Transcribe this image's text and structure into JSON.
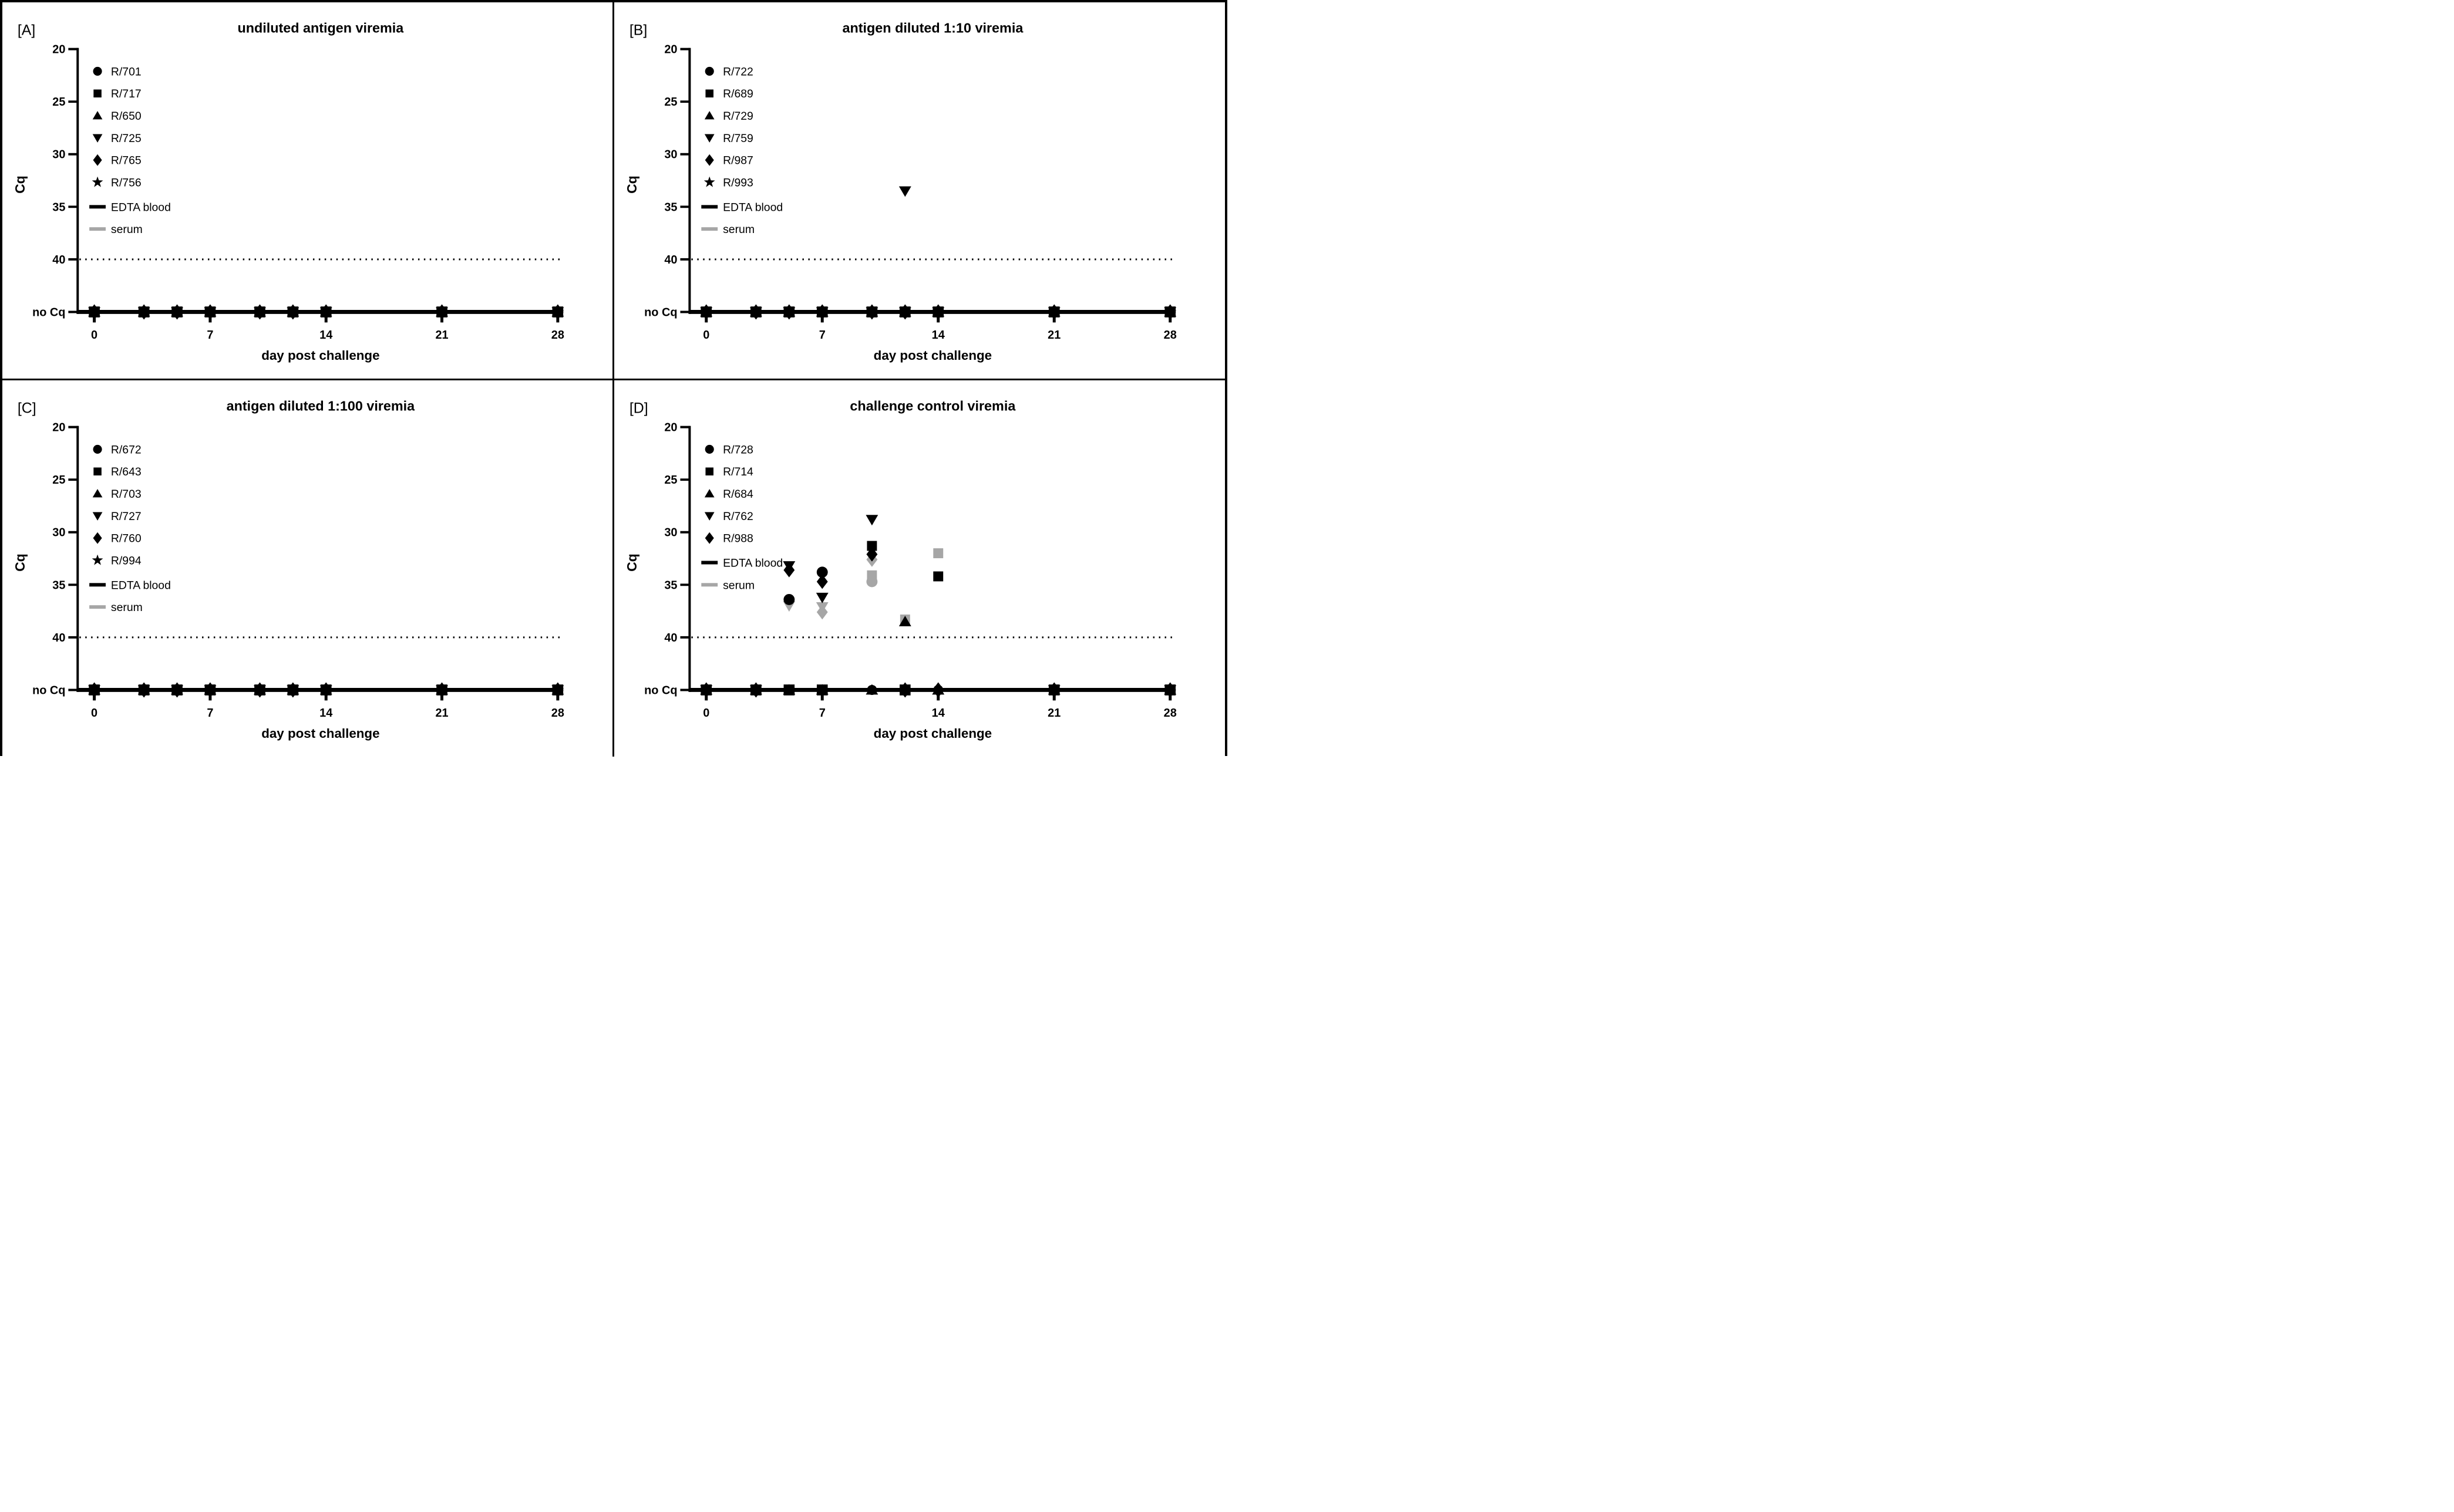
{
  "serum_color": "#a6a6a6",
  "edta_color": "#000000",
  "chart_data": [
    {
      "panel_label": "[A]",
      "type": "scatter",
      "title": "undiluted antigen viremia",
      "xlabel": "day post challenge",
      "ylabel": "Cq",
      "x_ticks": [
        0,
        7,
        14,
        21,
        28
      ],
      "y_ticks": [
        20,
        25,
        30,
        35,
        40
      ],
      "y_axis_reversed": true,
      "no_cq_label": "no Cq",
      "detection_cutoff_cq": 40,
      "sample_days": [
        0,
        3,
        5,
        7,
        10,
        12,
        14,
        21,
        28
      ],
      "legend": {
        "animals": [
          {
            "id": "R/701",
            "marker": "circle"
          },
          {
            "id": "R/717",
            "marker": "square"
          },
          {
            "id": "R/650",
            "marker": "triangle-up"
          },
          {
            "id": "R/725",
            "marker": "triangle-down"
          },
          {
            "id": "R/765",
            "marker": "diamond"
          },
          {
            "id": "R/756",
            "marker": "star"
          }
        ],
        "sample_types": [
          {
            "label": "EDTA blood",
            "color": "#000000"
          },
          {
            "label": "serum",
            "color": "#a6a6a6"
          }
        ]
      },
      "detected_points": [],
      "no_cq_clusters": [
        {
          "day": 0,
          "shapes": "all"
        },
        {
          "day": 3,
          "shapes": "all"
        },
        {
          "day": 5,
          "shapes": "all"
        },
        {
          "day": 7,
          "shapes": "all"
        },
        {
          "day": 10,
          "shapes": "all"
        },
        {
          "day": 12,
          "shapes": "all"
        },
        {
          "day": 14,
          "shapes": "all"
        },
        {
          "day": 21,
          "shapes": "all"
        },
        {
          "day": 28,
          "shapes": "all"
        }
      ]
    },
    {
      "panel_label": "[B]",
      "type": "scatter",
      "title": "antigen diluted 1:10 viremia",
      "xlabel": "day post challenge",
      "ylabel": "Cq",
      "x_ticks": [
        0,
        7,
        14,
        21,
        28
      ],
      "y_ticks": [
        20,
        25,
        30,
        35,
        40
      ],
      "y_axis_reversed": true,
      "no_cq_label": "no Cq",
      "detection_cutoff_cq": 40,
      "sample_days": [
        0,
        3,
        5,
        7,
        10,
        12,
        14,
        21,
        28
      ],
      "legend": {
        "animals": [
          {
            "id": "R/722",
            "marker": "circle"
          },
          {
            "id": "R/689",
            "marker": "square"
          },
          {
            "id": "R/729",
            "marker": "triangle-up"
          },
          {
            "id": "R/759",
            "marker": "triangle-down"
          },
          {
            "id": "R/987",
            "marker": "diamond"
          },
          {
            "id": "R/993",
            "marker": "star"
          }
        ],
        "sample_types": [
          {
            "label": "EDTA blood",
            "color": "#000000"
          },
          {
            "label": "serum",
            "color": "#a6a6a6"
          }
        ]
      },
      "detected_points": [
        {
          "animal": "R/759",
          "sample": "EDTA blood",
          "marker": "triangle-down",
          "day": 12,
          "cq": 33.5
        }
      ],
      "no_cq_clusters": [
        {
          "day": 0,
          "shapes": "all"
        },
        {
          "day": 3,
          "shapes": "all"
        },
        {
          "day": 5,
          "shapes": "all"
        },
        {
          "day": 7,
          "shapes": "all"
        },
        {
          "day": 10,
          "shapes": "all"
        },
        {
          "day": 12,
          "shapes": "all"
        },
        {
          "day": 14,
          "shapes": "all"
        },
        {
          "day": 21,
          "shapes": "all"
        },
        {
          "day": 28,
          "shapes": "all"
        }
      ]
    },
    {
      "panel_label": "[C]",
      "type": "scatter",
      "title": "antigen diluted 1:100 viremia",
      "xlabel": "day post challenge",
      "ylabel": "Cq",
      "x_ticks": [
        0,
        7,
        14,
        21,
        28
      ],
      "y_ticks": [
        20,
        25,
        30,
        35,
        40
      ],
      "y_axis_reversed": true,
      "no_cq_label": "no Cq",
      "detection_cutoff_cq": 40,
      "sample_days": [
        0,
        3,
        5,
        7,
        10,
        12,
        14,
        21,
        28
      ],
      "legend": {
        "animals": [
          {
            "id": "R/672",
            "marker": "circle"
          },
          {
            "id": "R/643",
            "marker": "square"
          },
          {
            "id": "R/703",
            "marker": "triangle-up"
          },
          {
            "id": "R/727",
            "marker": "triangle-down"
          },
          {
            "id": "R/760",
            "marker": "diamond"
          },
          {
            "id": "R/994",
            "marker": "star"
          }
        ],
        "sample_types": [
          {
            "label": "EDTA blood",
            "color": "#000000"
          },
          {
            "label": "serum",
            "color": "#a6a6a6"
          }
        ]
      },
      "detected_points": [],
      "no_cq_clusters": [
        {
          "day": 0,
          "shapes": "all"
        },
        {
          "day": 3,
          "shapes": "all"
        },
        {
          "day": 5,
          "shapes": "all"
        },
        {
          "day": 7,
          "shapes": "all"
        },
        {
          "day": 10,
          "shapes": "all"
        },
        {
          "day": 12,
          "shapes": "all"
        },
        {
          "day": 14,
          "shapes": "all"
        },
        {
          "day": 21,
          "shapes": "all"
        },
        {
          "day": 28,
          "shapes": "all"
        }
      ]
    },
    {
      "panel_label": "[D]",
      "type": "scatter",
      "title": "challenge control viremia",
      "xlabel": "day post challenge",
      "ylabel": "Cq",
      "x_ticks": [
        0,
        7,
        14,
        21,
        28
      ],
      "y_ticks": [
        20,
        25,
        30,
        35,
        40
      ],
      "y_axis_reversed": true,
      "no_cq_label": "no Cq",
      "detection_cutoff_cq": 40,
      "sample_days": [
        0,
        3,
        5,
        7,
        10,
        12,
        14,
        21,
        28
      ],
      "legend": {
        "animals": [
          {
            "id": "R/728",
            "marker": "circle"
          },
          {
            "id": "R/714",
            "marker": "square"
          },
          {
            "id": "R/684",
            "marker": "triangle-up"
          },
          {
            "id": "R/762",
            "marker": "triangle-down"
          },
          {
            "id": "R/988",
            "marker": "diamond"
          }
        ],
        "sample_types": [
          {
            "label": "EDTA blood",
            "color": "#000000"
          },
          {
            "label": "serum",
            "color": "#a6a6a6"
          }
        ]
      },
      "detected_points": [
        {
          "animal": "R/762",
          "sample": "serum",
          "marker": "triangle-down",
          "day": 5,
          "cq": 37.0
        },
        {
          "animal": "R/762",
          "sample": "serum",
          "marker": "triangle-down",
          "day": 7,
          "cq": 37.1
        },
        {
          "animal": "R/988",
          "sample": "serum",
          "marker": "diamond",
          "day": 7,
          "cq": 37.6
        },
        {
          "animal": "R/714",
          "sample": "serum",
          "marker": "square",
          "day": 10,
          "cq": 34.1
        },
        {
          "animal": "R/728",
          "sample": "serum",
          "marker": "circle",
          "day": 10,
          "cq": 34.7
        },
        {
          "animal": "R/988",
          "sample": "serum",
          "marker": "diamond",
          "day": 10,
          "cq": 32.6
        },
        {
          "animal": "R/714",
          "sample": "serum",
          "marker": "square",
          "day": 12,
          "cq": 38.3
        },
        {
          "animal": "R/714",
          "sample": "serum",
          "marker": "square",
          "day": 14,
          "cq": 32.0
        },
        {
          "animal": "R/762",
          "sample": "EDTA blood",
          "marker": "triangle-down",
          "day": 5,
          "cq": 33.2
        },
        {
          "animal": "R/988",
          "sample": "EDTA blood",
          "marker": "diamond",
          "day": 5,
          "cq": 33.6
        },
        {
          "animal": "R/728",
          "sample": "EDTA blood",
          "marker": "circle",
          "day": 5,
          "cq": 36.4
        },
        {
          "animal": "R/728",
          "sample": "EDTA blood",
          "marker": "circle",
          "day": 7,
          "cq": 33.8
        },
        {
          "animal": "R/988",
          "sample": "EDTA blood",
          "marker": "diamond",
          "day": 7,
          "cq": 34.7
        },
        {
          "animal": "R/762",
          "sample": "EDTA blood",
          "marker": "triangle-down",
          "day": 7,
          "cq": 36.2
        },
        {
          "animal": "R/762",
          "sample": "EDTA blood",
          "marker": "triangle-down",
          "day": 10,
          "cq": 28.8
        },
        {
          "animal": "R/714",
          "sample": "EDTA blood",
          "marker": "square",
          "day": 10,
          "cq": 31.3
        },
        {
          "animal": "R/988",
          "sample": "EDTA blood",
          "marker": "diamond",
          "day": 10,
          "cq": 32.1
        },
        {
          "animal": "R/684",
          "sample": "EDTA blood",
          "marker": "triangle-up",
          "day": 12,
          "cq": 38.5
        },
        {
          "animal": "R/714",
          "sample": "EDTA blood",
          "marker": "square",
          "day": 14,
          "cq": 34.2
        }
      ],
      "no_cq_clusters": [
        {
          "day": 0,
          "shapes": "all"
        },
        {
          "day": 3,
          "shapes": "all"
        },
        {
          "day": 5,
          "shapes": [
            "square",
            "triangle-up"
          ]
        },
        {
          "day": 7,
          "shapes": [
            "square",
            "triangle-up"
          ]
        },
        {
          "day": 10,
          "shapes": [
            "circle",
            "triangle-up"
          ]
        },
        {
          "day": 12,
          "shapes": [
            "square",
            "circle",
            "diamond"
          ]
        },
        {
          "day": 14,
          "shapes": [
            "circle",
            "diamond",
            "triangle-up"
          ]
        },
        {
          "day": 21,
          "shapes": "all"
        },
        {
          "day": 28,
          "shapes": "all"
        }
      ]
    }
  ]
}
